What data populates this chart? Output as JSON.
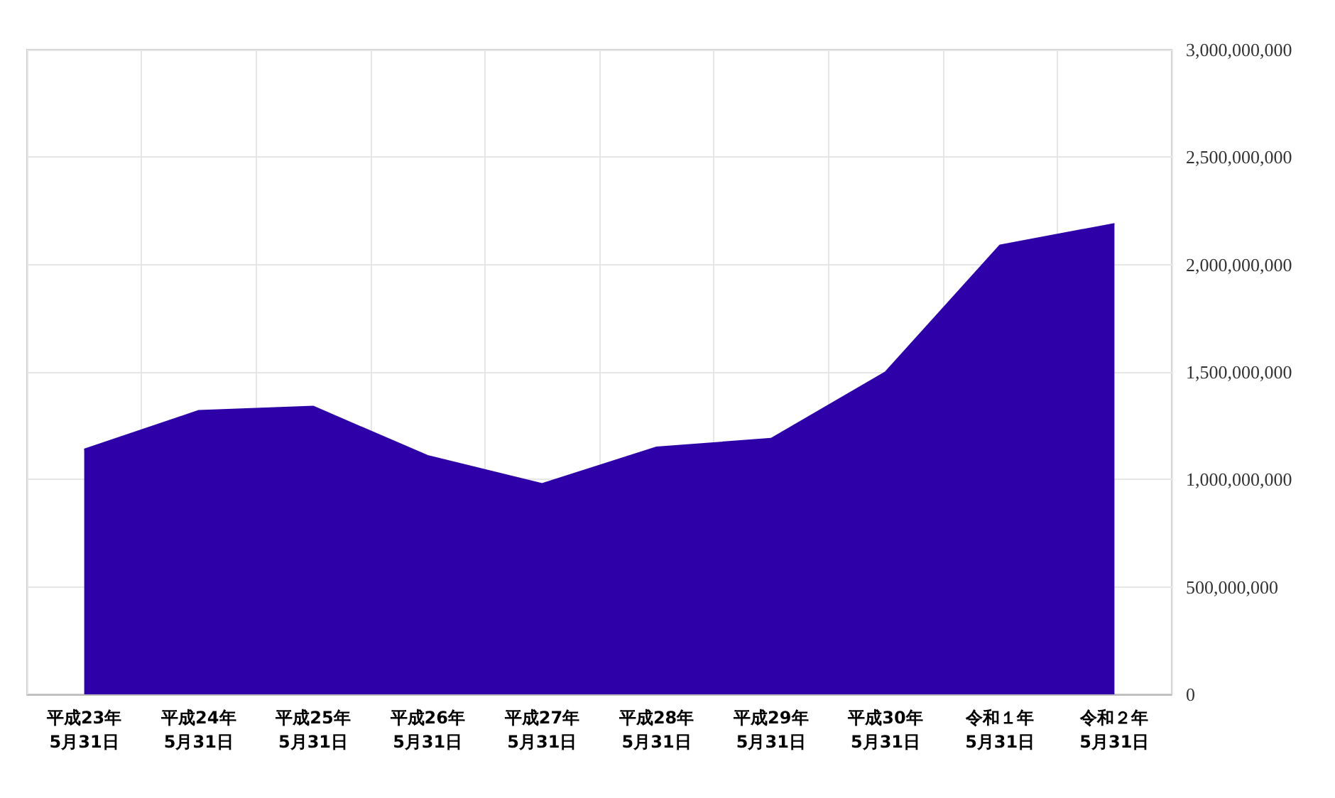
{
  "chart_data": {
    "type": "area",
    "categories": [
      "平成23年\n5月31日",
      "平成24年\n5月31日",
      "平成25年\n5月31日",
      "平成26年\n5月31日",
      "平成27年\n5月31日",
      "平成28年\n5月31日",
      "平成29年\n5月31日",
      "平成30年\n5月31日",
      "令和１年\n5月31日",
      "令和２年\n5月31日"
    ],
    "series": [
      {
        "color": "#2e00a8",
        "values": [
          1140000000,
          1320000000,
          1340000000,
          1110000000,
          980000000,
          1150000000,
          1190000000,
          1500000000,
          2090000000,
          2190000000
        ]
      }
    ],
    "ylim": [
      0,
      3000000000
    ],
    "yticks": [
      0,
      {
        "value": 500000000,
        "label": "500,000,000"
      },
      {
        "value": 1000000000,
        "label": "1,000,000,000"
      },
      {
        "value": 1500000000,
        "label": "1,500,000,000"
      },
      {
        "value": 2000000000,
        "label": "2,000,000,000"
      },
      {
        "value": 2500000000,
        "label": "2,500,000,000"
      },
      {
        "value": 3000000000,
        "label": "3,000,000,000"
      }
    ],
    "grid": true
  }
}
